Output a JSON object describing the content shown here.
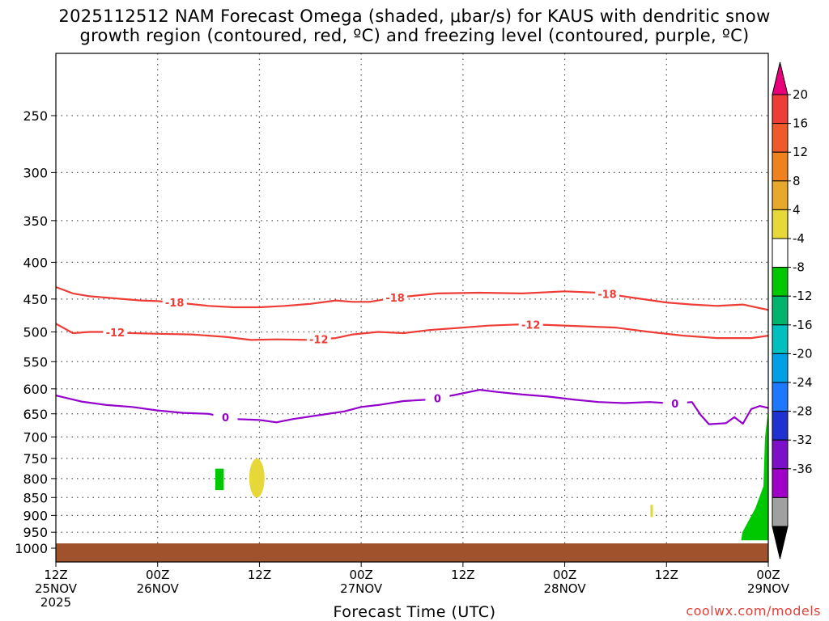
{
  "title": {
    "line1": "2025112512 NAM Forecast Omega (shaded, μbar/s) for KAUS with dendritic snow",
    "line2": "growth region (contoured, red, ºC) and freezing level (contoured, purple, ºC)"
  },
  "xaxis_title": "Forecast Time (UTC)",
  "credit": "coolwx.com/models",
  "chart_data": {
    "type": "time-height cross section",
    "title": "2025112512 NAM Forecast Omega (shaded, μbar/s) for KAUS with dendritic snow growth region (contoured, red, ºC) and freezing level (contoured, purple, ºC)",
    "xlabel": "Forecast Time (UTC)",
    "ylabel": "",
    "y_scale": "log pressure (hPa), inverted",
    "ylim": [
      1025,
      200
    ],
    "y_ticks": [
      250,
      300,
      350,
      400,
      450,
      500,
      550,
      600,
      650,
      700,
      750,
      800,
      850,
      900,
      950,
      1000
    ],
    "x_range_hours": [
      0,
      84
    ],
    "x_ticks": [
      {
        "hour": 0,
        "label": [
          "12Z",
          "25NOV",
          "2025"
        ]
      },
      {
        "hour": 12,
        "label": [
          "00Z",
          "26NOV"
        ]
      },
      {
        "hour": 24,
        "label": [
          "12Z"
        ]
      },
      {
        "hour": 36,
        "label": [
          "00Z",
          "27NOV"
        ]
      },
      {
        "hour": 48,
        "label": [
          "12Z"
        ]
      },
      {
        "hour": 60,
        "label": [
          "00Z",
          "28NOV"
        ]
      },
      {
        "hour": 72,
        "label": [
          "12Z"
        ]
      },
      {
        "hour": 84,
        "label": [
          "00Z",
          "29NOV"
        ]
      }
    ],
    "grid": "dotted",
    "contours": [
      {
        "name": "-18",
        "color": "#ee3c36",
        "labels_at_hours": [
          14,
          40,
          65
        ],
        "points": [
          [
            0,
            433
          ],
          [
            2,
            442
          ],
          [
            4,
            446
          ],
          [
            7,
            449
          ],
          [
            10,
            452
          ],
          [
            12,
            453
          ],
          [
            15,
            456
          ],
          [
            18,
            460
          ],
          [
            21,
            462
          ],
          [
            24,
            462
          ],
          [
            27,
            460
          ],
          [
            30,
            457
          ],
          [
            33,
            452
          ],
          [
            35,
            454
          ],
          [
            37,
            454
          ],
          [
            40,
            448
          ],
          [
            45,
            442
          ],
          [
            50,
            441
          ],
          [
            55,
            442
          ],
          [
            60,
            439
          ],
          [
            64,
            441
          ],
          [
            68,
            448
          ],
          [
            72,
            455
          ],
          [
            75,
            458
          ],
          [
            78,
            460
          ],
          [
            81,
            458
          ],
          [
            84,
            466
          ]
        ]
      },
      {
        "name": "-12",
        "color": "#ee3c36",
        "labels_at_hours": [
          7,
          31,
          56
        ],
        "points": [
          [
            0,
            487
          ],
          [
            2,
            502
          ],
          [
            4,
            500
          ],
          [
            6,
            500
          ],
          [
            9,
            502
          ],
          [
            12,
            503
          ],
          [
            16,
            504
          ],
          [
            20,
            508
          ],
          [
            23,
            513
          ],
          [
            26,
            512
          ],
          [
            30,
            513
          ],
          [
            33,
            510
          ],
          [
            35,
            504
          ],
          [
            38,
            500
          ],
          [
            41,
            502
          ],
          [
            44,
            497
          ],
          [
            48,
            493
          ],
          [
            51,
            490
          ],
          [
            55,
            488
          ],
          [
            58,
            489
          ],
          [
            62,
            491
          ],
          [
            66,
            493
          ],
          [
            70,
            500
          ],
          [
            74,
            506
          ],
          [
            78,
            510
          ],
          [
            82,
            510
          ],
          [
            84,
            506
          ]
        ]
      },
      {
        "name": "0",
        "color": "#9400cc",
        "labels_at_hours": [
          20,
          45,
          73
        ],
        "points": [
          [
            0,
            613
          ],
          [
            3,
            625
          ],
          [
            6,
            632
          ],
          [
            9,
            636
          ],
          [
            12,
            643
          ],
          [
            15,
            648
          ],
          [
            18,
            650
          ],
          [
            21,
            661
          ],
          [
            24,
            663
          ],
          [
            26,
            668
          ],
          [
            28,
            661
          ],
          [
            31,
            653
          ],
          [
            34,
            645
          ],
          [
            36,
            636
          ],
          [
            38,
            632
          ],
          [
            41,
            624
          ],
          [
            44,
            621
          ],
          [
            47,
            612
          ],
          [
            50,
            602
          ],
          [
            52,
            606
          ],
          [
            55,
            611
          ],
          [
            58,
            615
          ],
          [
            61,
            621
          ],
          [
            64,
            626
          ],
          [
            67,
            628
          ],
          [
            70,
            626
          ],
          [
            73,
            629
          ],
          [
            75,
            626
          ],
          [
            76,
            652
          ],
          [
            77,
            672
          ],
          [
            78,
            671
          ],
          [
            79,
            670
          ],
          [
            80,
            657
          ],
          [
            81,
            671
          ],
          [
            82,
            640
          ],
          [
            83,
            634
          ],
          [
            84,
            638
          ]
        ]
      }
    ],
    "omega_regions": [
      {
        "value_range": [
          -8,
          -4
        ],
        "color": "#00c800",
        "hours": [
          18.8,
          19.8
        ],
        "pressure_hPa": [
          775,
          830
        ]
      },
      {
        "value_range": [
          4,
          8
        ],
        "color": "#e6d838",
        "hours": [
          22.8,
          24.6
        ],
        "pressure_hPa": [
          750,
          850
        ]
      },
      {
        "value_range": [
          4,
          8
        ],
        "color": "#e6d838",
        "hours": [
          70.1,
          70.4
        ],
        "pressure_hPa": [
          870,
          905
        ]
      },
      {
        "value_range": [
          -8,
          -4
        ],
        "color": "#00c800",
        "hours": [
          80.8,
          84
        ],
        "pressure_hPa": [
          640,
          975
        ]
      }
    ],
    "ground_color": "#a0522d",
    "colorbar": {
      "ticks": [
        20,
        16,
        12,
        8,
        4,
        -4,
        -8,
        -12,
        -16,
        -20,
        -24,
        -28,
        -32,
        -36
      ],
      "colors": [
        "#e8007a",
        "#ee3c36",
        "#f05a2a",
        "#f0821e",
        "#e8a82c",
        "#e6d838",
        "#ffffff",
        "#00c800",
        "#00b46e",
        "#00bfbf",
        "#00a0e6",
        "#1e78ff",
        "#1e32d2",
        "#7d0fc8",
        "#a000c8",
        "#a0a0a0",
        "#000000"
      ]
    }
  }
}
